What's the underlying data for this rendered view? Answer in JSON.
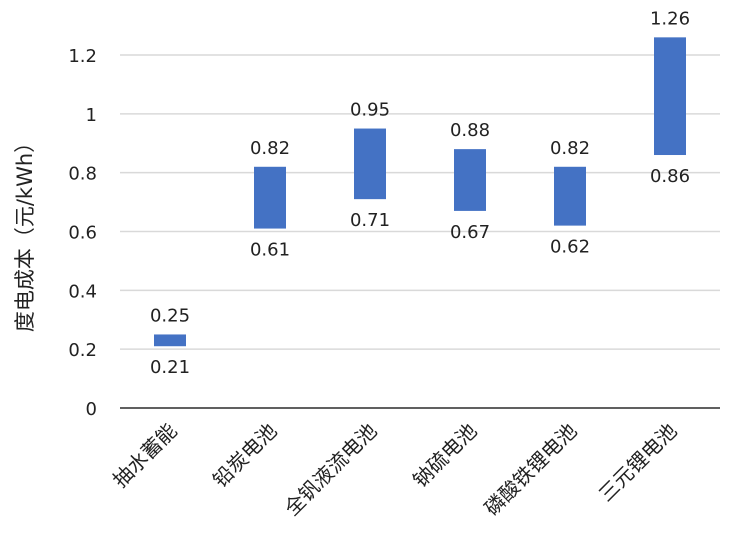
{
  "chart_data": {
    "type": "bar",
    "subtype": "floating-range",
    "title": "",
    "xlabel": "",
    "ylabel": "度电成本（元/kWh）",
    "ylim": [
      0,
      1.2
    ],
    "yticks": [
      "0",
      "0.2",
      "0.4",
      "0.6",
      "0.8",
      "1",
      "1.2"
    ],
    "grid": true,
    "categories": [
      "抽水蓄能",
      "铅炭电池",
      "全钒液流电池",
      "钠硫电池",
      "磷酸铁锂电池",
      "三元锂电池"
    ],
    "series": [
      {
        "low": [
          0.21,
          0.61,
          0.71,
          0.67,
          0.62,
          0.86
        ],
        "high": [
          0.25,
          0.82,
          0.95,
          0.88,
          0.82,
          1.26
        ],
        "low_labels": [
          "0.21",
          "0.61",
          "0.71",
          "0.67",
          "0.62",
          "0.86"
        ],
        "high_labels": [
          "0.25",
          "0.82",
          "0.95",
          "0.88",
          "0.82",
          "1.26"
        ],
        "color": "#4472C4"
      }
    ],
    "grid_color": "#D9D9D9",
    "axis_color": "#000000"
  }
}
